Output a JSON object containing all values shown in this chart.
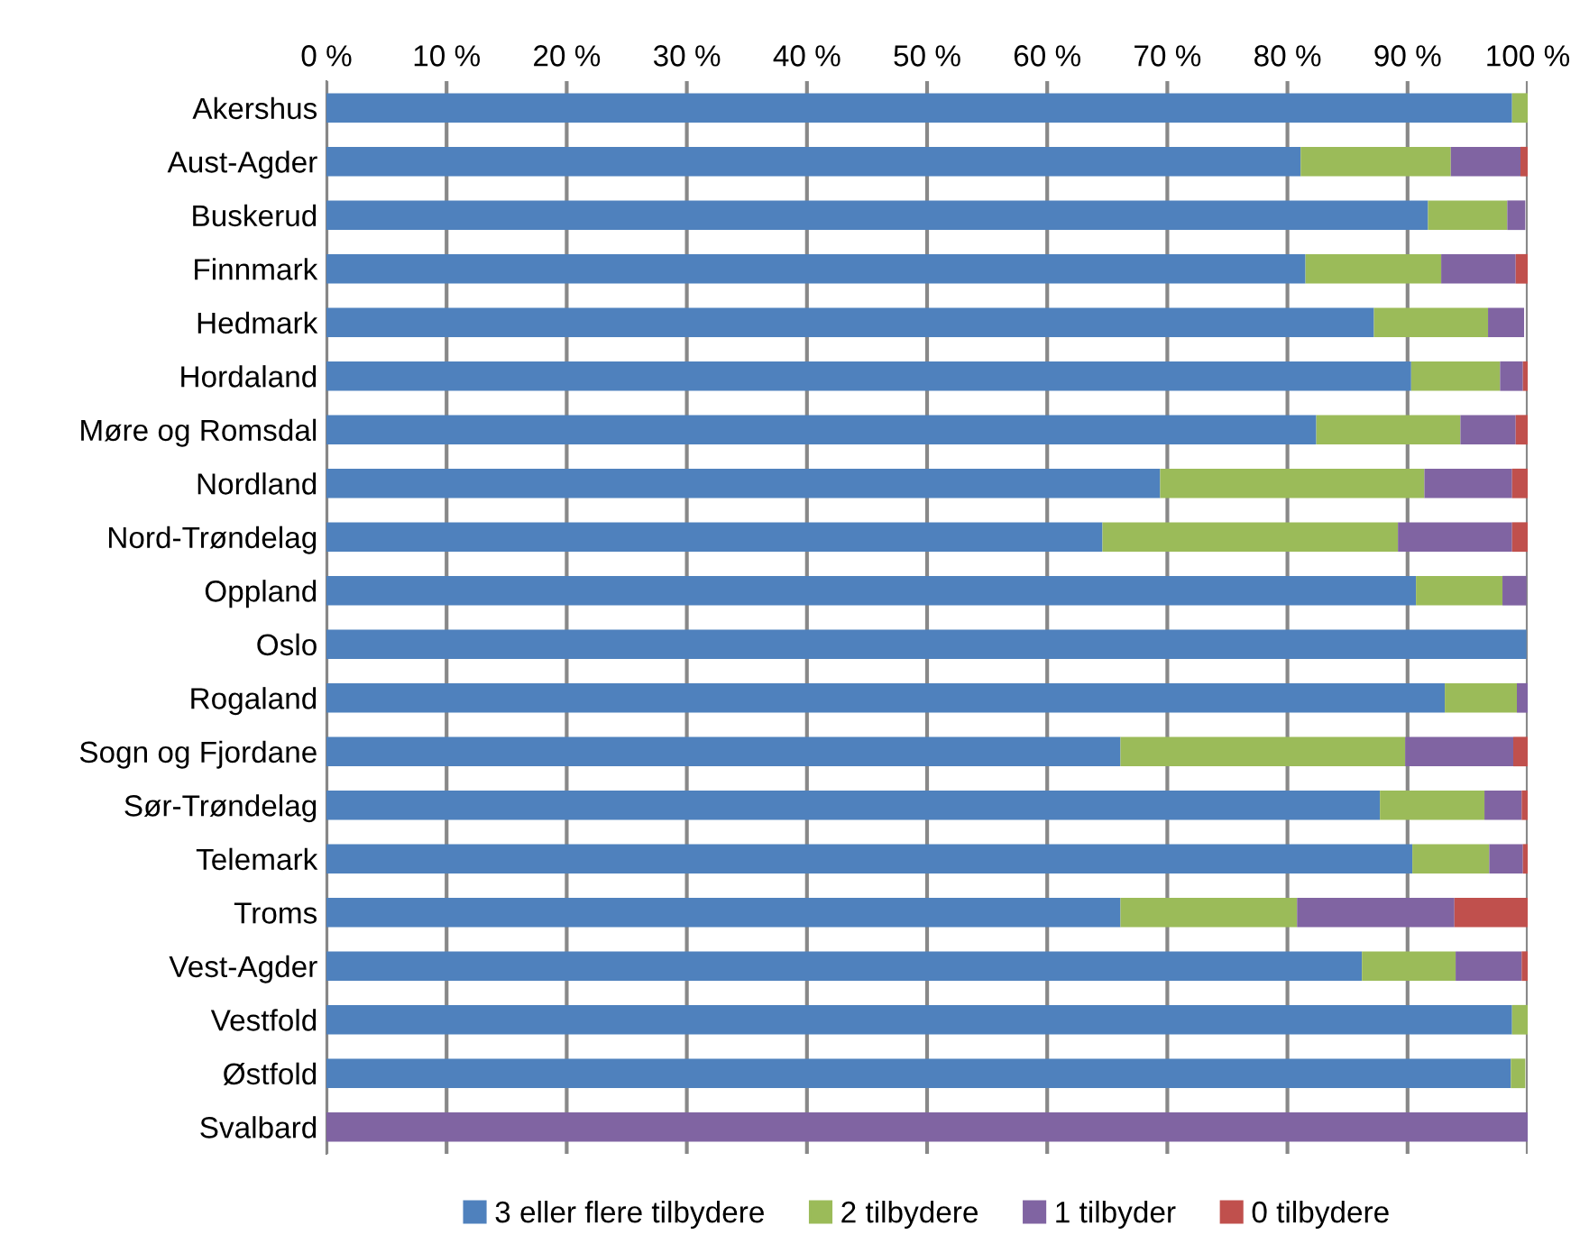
{
  "chart_data": {
    "type": "bar",
    "orientation": "horizontal",
    "stacked": true,
    "categories": [
      "Akershus",
      "Aust-Agder",
      "Buskerud",
      "Finnmark",
      "Hedmark",
      "Hordaland",
      "Møre og Romsdal",
      "Nordland",
      "Nord-Trøndelag",
      "Oppland",
      "Oslo",
      "Rogaland",
      "Sogn og Fjordane",
      "Sør-Trøndelag",
      "Telemark",
      "Troms",
      "Vest-Agder",
      "Vestfold",
      "Østfold",
      "Svalbard"
    ],
    "series": [
      {
        "name": "3 eller flere tilbydere",
        "color": "#4f81bd",
        "values": [
          98.7,
          81.1,
          91.7,
          81.5,
          87.2,
          90.3,
          82.4,
          69.4,
          64.6,
          90.7,
          99.9,
          93.1,
          66.1,
          87.7,
          90.4,
          66.1,
          86.2,
          98.7,
          98.6,
          0
        ]
      },
      {
        "name": "2 tilbydere",
        "color": "#9bbb59",
        "values": [
          1.3,
          12.5,
          6.6,
          11.3,
          9.5,
          7.4,
          12.0,
          22.0,
          24.6,
          7.2,
          null,
          6.0,
          23.7,
          8.7,
          6.4,
          14.7,
          7.8,
          1.3,
          1.2,
          0
        ]
      },
      {
        "name": "1 tilbyder",
        "color": "#8064a2",
        "values": [
          0,
          5.8,
          1.5,
          6.2,
          3.0,
          1.9,
          4.6,
          7.3,
          9.5,
          2.0,
          0,
          0.9,
          9.0,
          3.1,
          2.8,
          13.1,
          5.5,
          0,
          null,
          100
        ]
      },
      {
        "name": "0 tilbydere",
        "color": "#c0504d",
        "values": [
          0,
          0.6,
          null,
          1.0,
          null,
          0.4,
          1.0,
          1.3,
          1.3,
          null,
          0,
          0,
          1.2,
          0.5,
          0.4,
          6.1,
          0.5,
          0,
          0,
          0
        ]
      }
    ],
    "xlim": [
      0,
      100
    ],
    "xticks": [
      {
        "value": 0,
        "label": "0 %"
      },
      {
        "value": 10,
        "label": "10 %"
      },
      {
        "value": 20,
        "label": "20 %"
      },
      {
        "value": 30,
        "label": "30 %"
      },
      {
        "value": 40,
        "label": "40 %"
      },
      {
        "value": 50,
        "label": "50 %"
      },
      {
        "value": 60,
        "label": "60 %"
      },
      {
        "value": 70,
        "label": "70 %"
      },
      {
        "value": 80,
        "label": "80 %"
      },
      {
        "value": 90,
        "label": "90 %"
      },
      {
        "value": 100,
        "label": "100 %"
      }
    ],
    "grid": "x",
    "legend": "bottom"
  }
}
